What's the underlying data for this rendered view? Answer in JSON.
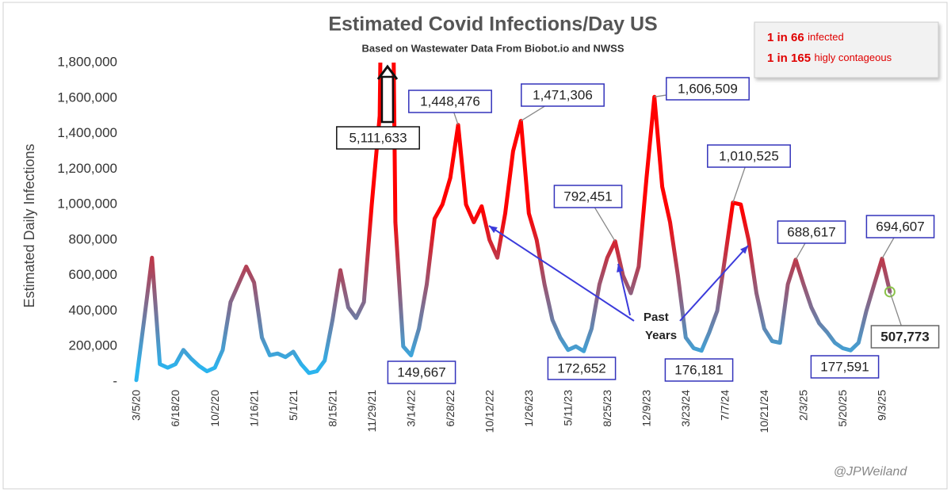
{
  "chart_data": {
    "type": "line",
    "title": "Estimated Covid Infections/Day US",
    "subtitle": "Based on Wastewater Data From Biobot.io and NWSS",
    "y_label": "Estimated Daily Infections",
    "info_box": [
      {
        "bold": "1 in 66",
        "text": "infected"
      },
      {
        "bold": "1 in 165",
        "text": "higly contageous"
      }
    ],
    "annotation": {
      "lines": [
        "Past",
        "Years"
      ]
    },
    "credit": "@JPWeiland",
    "colors": {
      "low": "#2bb4ee",
      "high": "#ff0000",
      "last_point": "#8bc34a"
    },
    "ylim": [
      0,
      1800000
    ],
    "yticks": [
      {
        "value": 0,
        "label": "-"
      },
      {
        "value": 200000,
        "label": "200,000"
      },
      {
        "value": 400000,
        "label": "400,000"
      },
      {
        "value": 600000,
        "label": "600,000"
      },
      {
        "value": 800000,
        "label": "800,000"
      },
      {
        "value": 1000000,
        "label": "1,000,000"
      },
      {
        "value": 1200000,
        "label": "1,200,000"
      },
      {
        "value": 1400000,
        "label": "1,400,000"
      },
      {
        "value": 1600000,
        "label": "1,600,000"
      },
      {
        "value": 1800000,
        "label": "1,800,000"
      }
    ],
    "grid": false,
    "categories": [
      "3/5/20",
      null,
      null,
      null,
      null,
      "6/18/20",
      null,
      null,
      null,
      null,
      "10/2/20",
      null,
      null,
      null,
      null,
      "1/16/21",
      null,
      null,
      null,
      null,
      "5/1/21",
      null,
      null,
      null,
      null,
      "8/15/21",
      null,
      null,
      null,
      null,
      "11/29/21",
      null,
      null,
      null,
      null,
      "3/14/22",
      null,
      null,
      null,
      null,
      "6/28/22",
      null,
      null,
      null,
      null,
      "10/12/22",
      null,
      null,
      null,
      null,
      "1/26/23",
      null,
      null,
      null,
      null,
      "5/11/23",
      null,
      null,
      null,
      null,
      "8/25/23",
      null,
      null,
      null,
      null,
      "12/9/23",
      null,
      null,
      null,
      null,
      "3/23/24",
      null,
      null,
      null,
      null,
      "7/7/24",
      null,
      null,
      null,
      null,
      "10/21/24",
      null,
      null,
      null,
      null,
      "2/3/25",
      null,
      null,
      null,
      null,
      "5/20/25",
      null,
      null,
      null,
      null,
      "9/3/25",
      null
    ],
    "values": [
      10000,
      350000,
      700000,
      100000,
      80000,
      100000,
      180000,
      130000,
      90000,
      60000,
      80000,
      180000,
      450000,
      550000,
      650000,
      560000,
      250000,
      150000,
      160000,
      140000,
      170000,
      100000,
      50000,
      60000,
      120000,
      350000,
      630000,
      420000,
      360000,
      450000,
      1000000,
      1500000,
      5111633,
      900000,
      200000,
      149667,
      300000,
      550000,
      920000,
      1000000,
      1150000,
      1448476,
      1000000,
      900000,
      990000,
      800000,
      700000,
      950000,
      1300000,
      1471306,
      950000,
      800000,
      550000,
      350000,
      250000,
      180000,
      200000,
      172652,
      300000,
      550000,
      700000,
      792451,
      600000,
      500000,
      650000,
      1150000,
      1606509,
      1100000,
      900000,
      600000,
      250000,
      190000,
      176181,
      280000,
      400000,
      700000,
      1010525,
      1000000,
      800000,
      500000,
      300000,
      230000,
      220000,
      550000,
      688617,
      550000,
      420000,
      330000,
      280000,
      220000,
      190000,
      177591,
      220000,
      400000,
      550000,
      694607,
      507773
    ],
    "value_labels": [
      null,
      null,
      null,
      null,
      null,
      null,
      null,
      null,
      null,
      null,
      null,
      null,
      null,
      null,
      null,
      null,
      null,
      null,
      null,
      null,
      null,
      null,
      null,
      null,
      null,
      null,
      null,
      null,
      null,
      null,
      null,
      null,
      "5,111,633",
      null,
      null,
      "149,667",
      null,
      null,
      null,
      null,
      null,
      "1,448,476",
      null,
      null,
      null,
      null,
      null,
      null,
      null,
      "1,471,306",
      null,
      null,
      null,
      null,
      null,
      null,
      null,
      "172,652",
      null,
      null,
      null,
      "792,451",
      null,
      null,
      null,
      null,
      "1,606,509",
      null,
      null,
      null,
      null,
      null,
      "176,181",
      null,
      null,
      null,
      "1,010,525",
      null,
      null,
      null,
      null,
      null,
      null,
      null,
      "688,617",
      null,
      null,
      null,
      null,
      null,
      null,
      "177,591",
      null,
      null,
      null,
      "694,607",
      "507,773"
    ]
  }
}
